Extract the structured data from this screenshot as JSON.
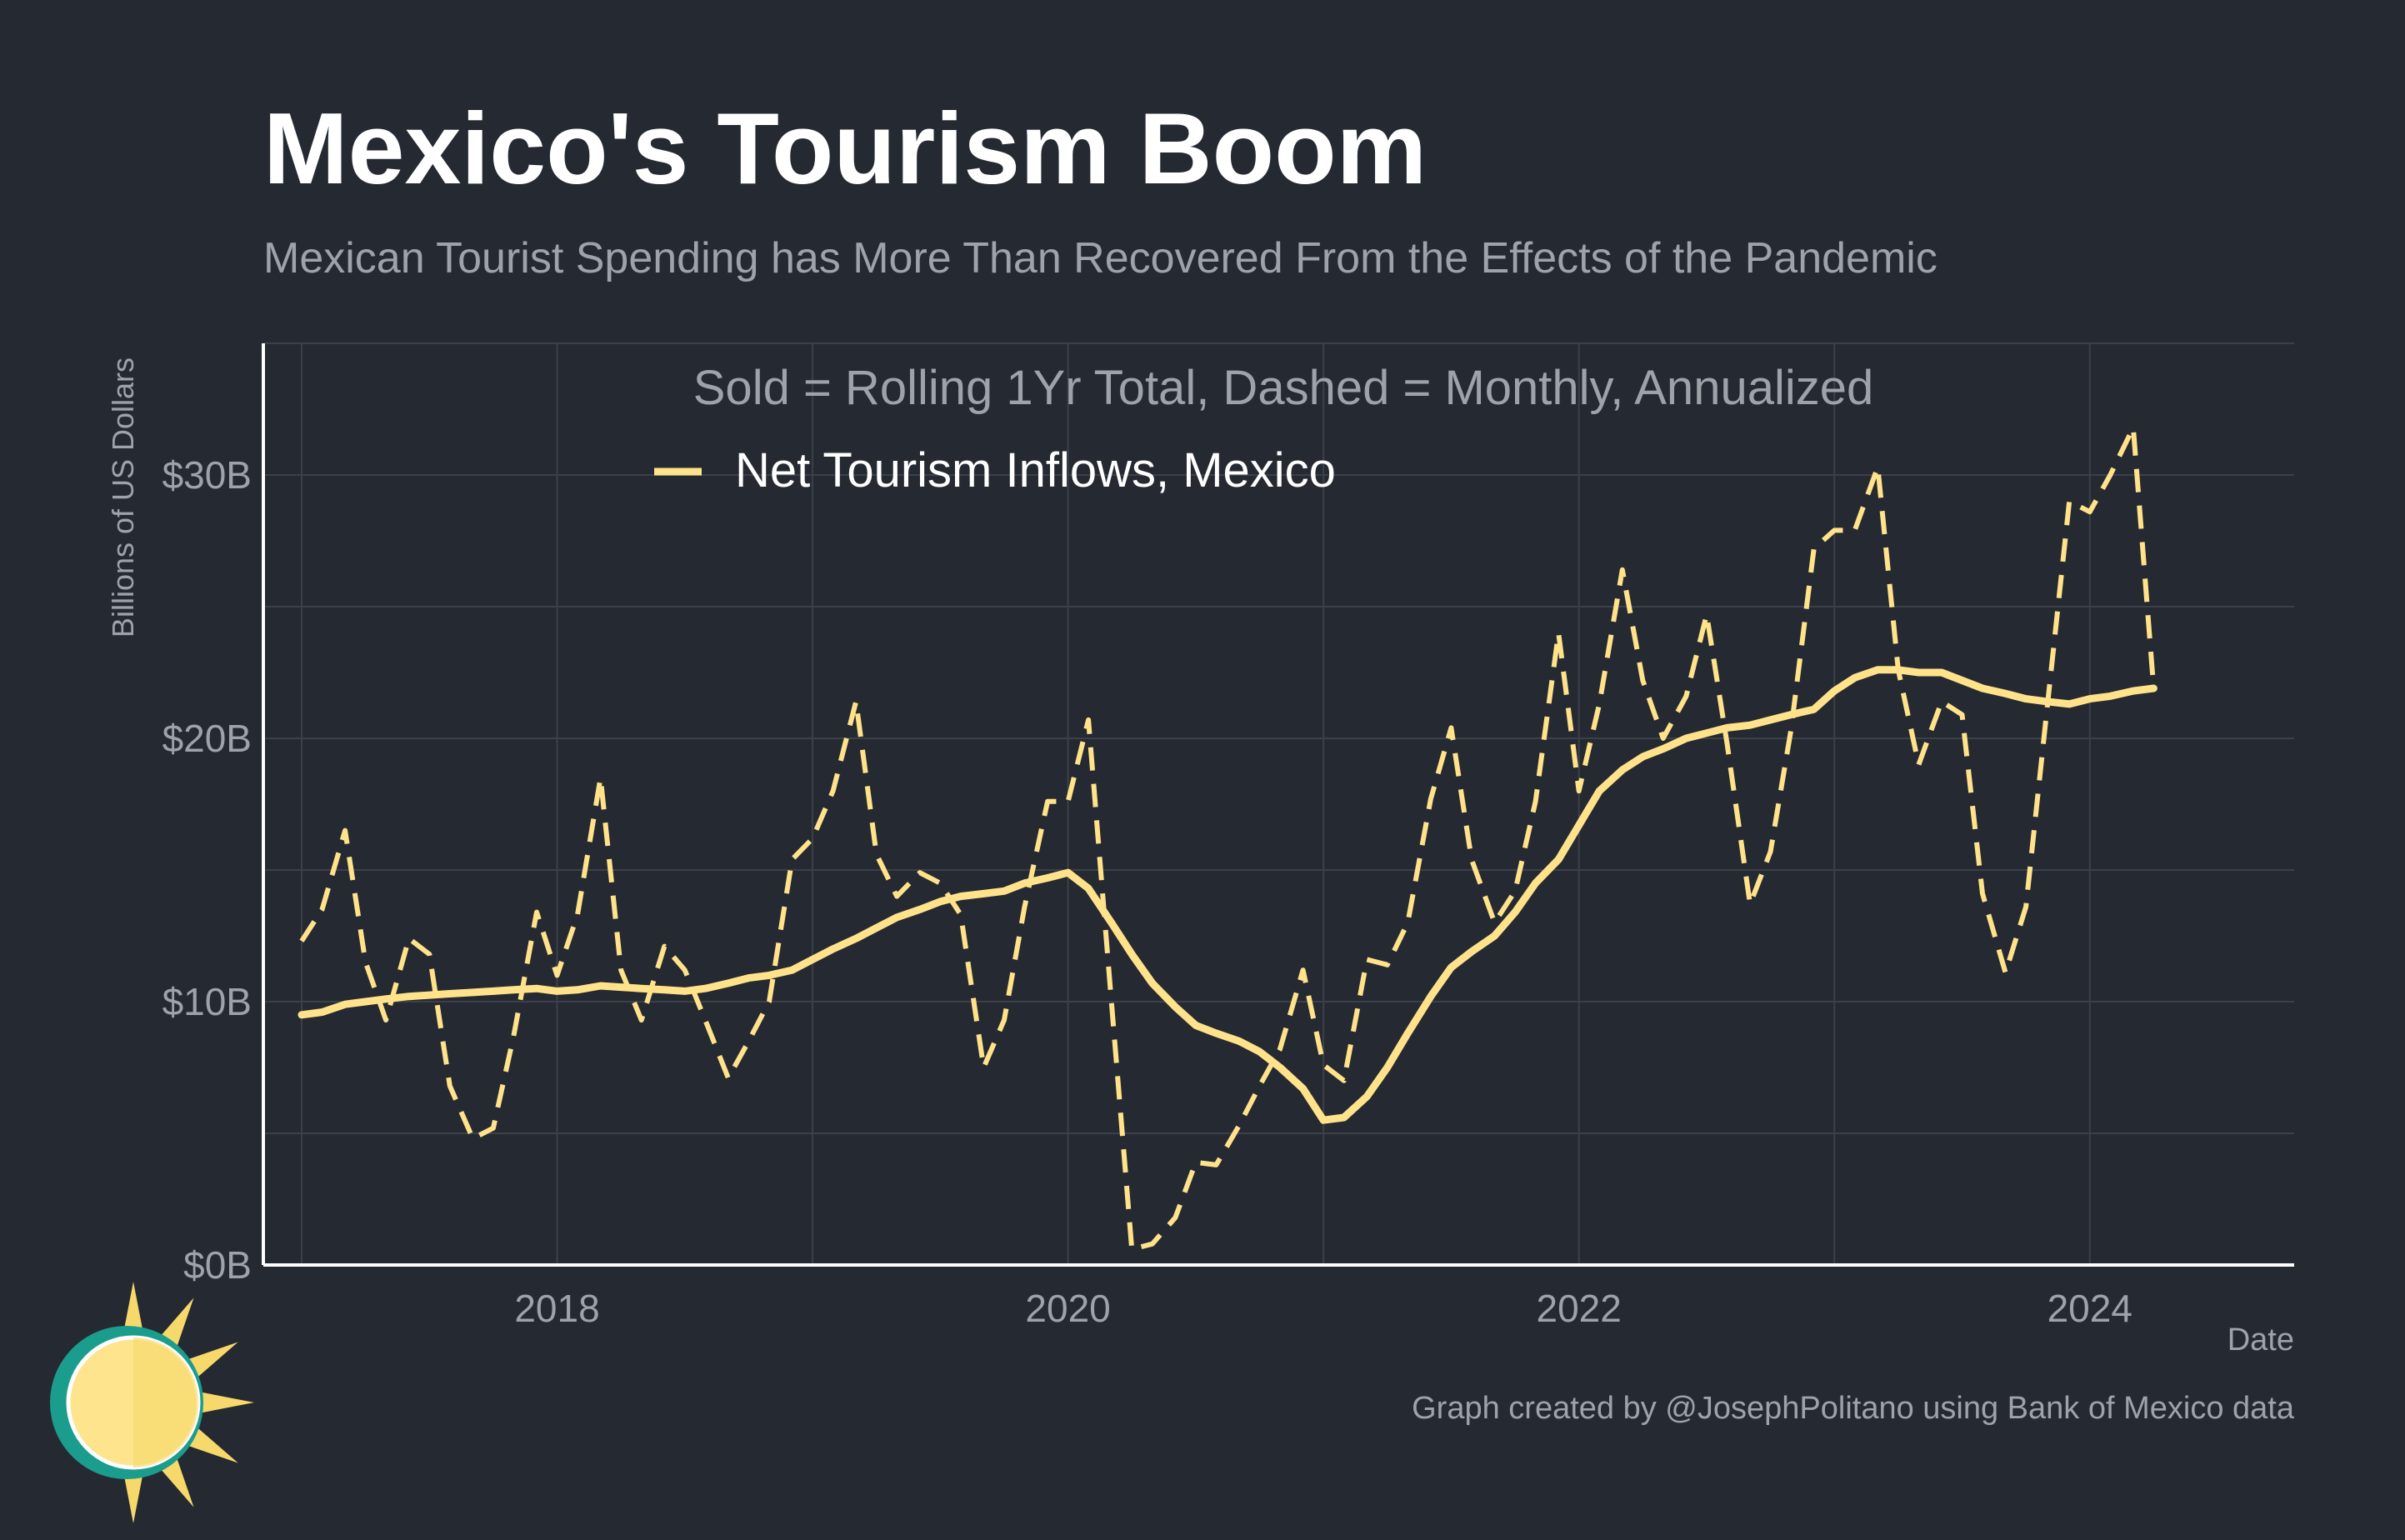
{
  "title": "Mexico's Tourism Boom",
  "subtitle": "Mexican Tourist Spending has More Than Recovered From the Effects of the Pandemic",
  "caption": "Graph created by @JosephPolitano using Bank of Mexico data",
  "colors": {
    "background": "#252932",
    "series": "#ffe28a",
    "grid": "#3b4049",
    "axis": "#ffffff",
    "muted_text": "#9ea2a9",
    "title": "#ffffff"
  },
  "chart_data": {
    "type": "line",
    "annotation": "Sold = Rolling 1Yr Total, Dashed = Monthly, Annualized",
    "xlabel": "Date",
    "ylabel": "Billions of US Dollars",
    "xlim": [
      2016.85,
      2024.8
    ],
    "ylim": [
      0,
      35
    ],
    "yticks": [
      0,
      10,
      20,
      30
    ],
    "ytick_labels": [
      "$0B",
      "$10B",
      "$20B",
      "$30B"
    ],
    "xticks": [
      2018,
      2020,
      2022,
      2024
    ],
    "xtick_labels": [
      "2018",
      "2020",
      "2022",
      "2024"
    ],
    "grid": true,
    "legend_position": "top-center",
    "legend": [
      "Net Tourism Inflows, Mexico"
    ],
    "series": [
      {
        "name": "Net Tourism Inflows, Mexico",
        "style": "solid",
        "x": [
          2017.0,
          2017.08,
          2017.17,
          2017.25,
          2017.33,
          2017.42,
          2017.5,
          2017.58,
          2017.67,
          2017.75,
          2017.83,
          2017.92,
          2018.0,
          2018.08,
          2018.17,
          2018.25,
          2018.33,
          2018.42,
          2018.5,
          2018.58,
          2018.67,
          2018.75,
          2018.83,
          2018.92,
          2019.0,
          2019.08,
          2019.17,
          2019.25,
          2019.33,
          2019.42,
          2019.5,
          2019.58,
          2019.67,
          2019.75,
          2019.83,
          2019.92,
          2020.0,
          2020.08,
          2020.17,
          2020.25,
          2020.33,
          2020.42,
          2020.5,
          2020.58,
          2020.67,
          2020.75,
          2020.83,
          2020.92,
          2021.0,
          2021.08,
          2021.17,
          2021.25,
          2021.33,
          2021.42,
          2021.5,
          2021.58,
          2021.67,
          2021.75,
          2021.83,
          2021.92,
          2022.0,
          2022.08,
          2022.17,
          2022.25,
          2022.33,
          2022.42,
          2022.5,
          2022.58,
          2022.67,
          2022.75,
          2022.83,
          2022.92,
          2023.0,
          2023.08,
          2023.17,
          2023.25,
          2023.33,
          2023.42,
          2023.5,
          2023.58,
          2023.67,
          2023.75,
          2023.83,
          2023.92,
          2024.0,
          2024.08,
          2024.17,
          2024.25
        ],
        "values": [
          9.5,
          9.6,
          9.9,
          10.0,
          10.1,
          10.2,
          10.25,
          10.3,
          10.35,
          10.4,
          10.45,
          10.5,
          10.4,
          10.45,
          10.6,
          10.55,
          10.5,
          10.45,
          10.4,
          10.5,
          10.7,
          10.9,
          11.0,
          11.2,
          11.6,
          12.0,
          12.4,
          12.8,
          13.2,
          13.5,
          13.8,
          14.0,
          14.1,
          14.2,
          14.5,
          14.7,
          14.9,
          14.3,
          13.0,
          11.8,
          10.7,
          9.8,
          9.1,
          8.8,
          8.5,
          8.1,
          7.5,
          6.7,
          5.5,
          5.6,
          6.4,
          7.5,
          8.8,
          10.2,
          11.3,
          11.9,
          12.5,
          13.4,
          14.5,
          15.4,
          16.7,
          18.0,
          18.8,
          19.3,
          19.6,
          20.0,
          20.2,
          20.4,
          20.5,
          20.7,
          20.9,
          21.1,
          21.8,
          22.3,
          22.6,
          22.6,
          22.5,
          22.5,
          22.2,
          21.9,
          21.7,
          21.5,
          21.4,
          21.3,
          21.5,
          21.6,
          21.8,
          21.9
        ]
      },
      {
        "name": "Net Tourism Inflows, Mexico (monthly, annualized)",
        "style": "dashed",
        "x": [
          2017.0,
          2017.08,
          2017.17,
          2017.25,
          2017.33,
          2017.42,
          2017.5,
          2017.58,
          2017.67,
          2017.75,
          2017.83,
          2017.92,
          2018.0,
          2018.08,
          2018.17,
          2018.25,
          2018.33,
          2018.42,
          2018.5,
          2018.58,
          2018.67,
          2018.75,
          2018.83,
          2018.92,
          2019.0,
          2019.08,
          2019.17,
          2019.25,
          2019.33,
          2019.42,
          2019.5,
          2019.58,
          2019.67,
          2019.75,
          2019.83,
          2019.92,
          2020.0,
          2020.08,
          2020.17,
          2020.25,
          2020.33,
          2020.42,
          2020.5,
          2020.58,
          2020.67,
          2020.75,
          2020.83,
          2020.92,
          2021.0,
          2021.08,
          2021.17,
          2021.25,
          2021.33,
          2021.42,
          2021.5,
          2021.58,
          2021.67,
          2021.75,
          2021.83,
          2021.92,
          2022.0,
          2022.08,
          2022.17,
          2022.25,
          2022.33,
          2022.42,
          2022.5,
          2022.58,
          2022.67,
          2022.75,
          2022.83,
          2022.92,
          2023.0,
          2023.08,
          2023.17,
          2023.25,
          2023.33,
          2023.42,
          2023.5,
          2023.58,
          2023.67,
          2023.75,
          2023.83,
          2023.92,
          2024.0,
          2024.08,
          2024.17,
          2024.25
        ],
        "values": [
          12.3,
          13.5,
          16.5,
          11.5,
          9.3,
          12.4,
          11.8,
          6.8,
          4.8,
          5.2,
          8.7,
          13.4,
          11.0,
          13.3,
          18.5,
          11.2,
          9.3,
          12.1,
          11.2,
          9.3,
          7.1,
          8.5,
          10.0,
          15.4,
          16.2,
          18.0,
          21.4,
          15.6,
          14.0,
          14.9,
          14.5,
          13.3,
          7.5,
          9.3,
          13.6,
          17.6,
          17.6,
          20.7,
          10.0,
          0.6,
          0.8,
          1.8,
          3.9,
          3.8,
          5.3,
          6.8,
          8.2,
          11.2,
          7.6,
          7.0,
          11.6,
          11.4,
          13.0,
          17.7,
          20.4,
          15.4,
          13.0,
          14.2,
          17.6,
          24.0,
          18.0,
          21.3,
          26.4,
          22.2,
          20.0,
          21.6,
          24.7,
          19.8,
          13.7,
          15.7,
          20.3,
          27.2,
          27.9,
          27.9,
          30.3,
          22.6,
          19.0,
          21.4,
          20.9,
          14.1,
          11.1,
          13.6,
          20.9,
          29.0,
          28.6,
          30.0,
          31.8,
          21.9
        ]
      }
    ]
  }
}
